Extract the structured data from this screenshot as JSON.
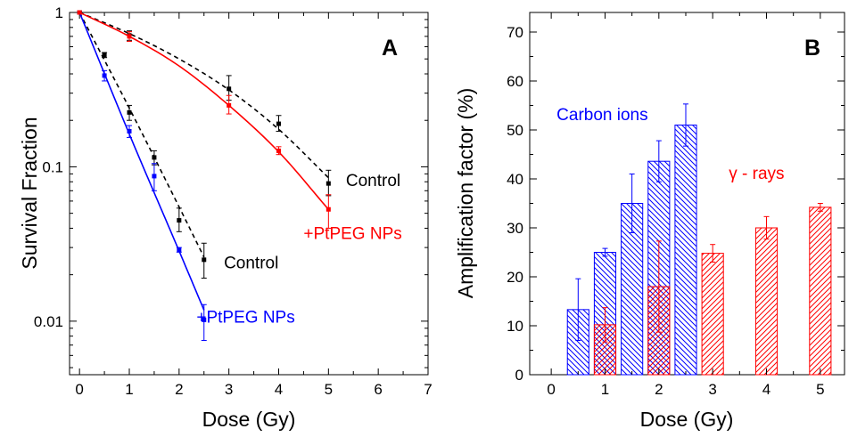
{
  "chart_data": [
    {
      "type": "scatter",
      "panel_label": "A",
      "xlabel": "Dose (Gy)",
      "ylabel": "Survival Fraction",
      "xlim": [
        -0.2,
        7
      ],
      "ylim": [
        0.0045,
        1
      ],
      "yscale": "log",
      "grid": false,
      "x_ticks": [
        "0",
        "1",
        "2",
        "3",
        "4",
        "5",
        "6",
        "7"
      ],
      "y_ticks": [
        "1",
        "0.1",
        "0.01"
      ],
      "series": [
        {
          "name": "Control",
          "color": "#000000",
          "line_style": "dashed",
          "x": [
            0,
            0.5,
            1,
            1.5,
            2,
            2.5
          ],
          "y": [
            1,
            0.53,
            0.225,
            0.115,
            0.045,
            0.025
          ],
          "err_low": [
            1,
            0.51,
            0.2,
            0.103,
            0.038,
            0.019
          ],
          "err_high": [
            1,
            0.55,
            0.25,
            0.127,
            0.054,
            0.032
          ],
          "fit": [
            [
              0,
              1
            ],
            [
              1,
              0.24
            ],
            [
              2,
              0.055
            ],
            [
              2.5,
              0.026
            ]
          ]
        },
        {
          "name": "+PtPEG NPs",
          "color": "#0000ff",
          "line_style": "solid",
          "x": [
            0,
            0.5,
            1,
            1.5,
            2,
            2.5
          ],
          "y": [
            1,
            0.39,
            0.17,
            0.087,
            0.029,
            0.0102
          ],
          "err_low": [
            1,
            0.36,
            0.155,
            0.07,
            0.028,
            0.0075
          ],
          "err_high": [
            1,
            0.42,
            0.185,
            0.105,
            0.03,
            0.0128
          ],
          "fit": [
            [
              0,
              1
            ],
            [
              1,
              0.163
            ],
            [
              2,
              0.0285
            ],
            [
              2.5,
              0.0118
            ]
          ]
        },
        {
          "name": "Control",
          "color": "#000000",
          "line_style": "dashed",
          "x": [
            0,
            1,
            3,
            4,
            5
          ],
          "y": [
            1,
            0.71,
            0.32,
            0.19,
            0.078
          ],
          "err_low": [
            1,
            0.66,
            0.27,
            0.17,
            0.065
          ],
          "err_high": [
            1,
            0.76,
            0.39,
            0.215,
            0.095
          ],
          "fit": [
            [
              0,
              1
            ],
            [
              1,
              0.73
            ],
            [
              2,
              0.5
            ],
            [
              3,
              0.315
            ],
            [
              4,
              0.175
            ],
            [
              5,
              0.085
            ]
          ]
        },
        {
          "name": "+PtPEG NPs",
          "color": "#ff0000",
          "line_style": "solid",
          "x": [
            0,
            1,
            3,
            4,
            5
          ],
          "y": [
            1,
            0.7,
            0.25,
            0.127,
            0.053
          ],
          "err_low": [
            1,
            0.65,
            0.22,
            0.12,
            0.04
          ],
          "err_high": [
            1,
            0.75,
            0.29,
            0.135,
            0.066
          ],
          "fit": [
            [
              0,
              1
            ],
            [
              1,
              0.7
            ],
            [
              2,
              0.45
            ],
            [
              3,
              0.25
            ],
            [
              4,
              0.125
            ],
            [
              5,
              0.053
            ]
          ]
        }
      ],
      "annotations": [
        {
          "text": "Control",
          "color": "#000000",
          "at": [
            5.35,
            0.075
          ]
        },
        {
          "text": "+PtPEG NPs",
          "color": "#ff0000",
          "at": [
            4.5,
            0.034
          ]
        },
        {
          "text": "Control",
          "color": "#000000",
          "at": [
            2.9,
            0.022
          ]
        },
        {
          "text": "+PtPEG NPs",
          "color": "#0000ff",
          "at": [
            2.35,
            0.0098
          ]
        }
      ]
    },
    {
      "type": "bar",
      "panel_label": "B",
      "xlabel": "Dose (Gy)",
      "ylabel": "Amplification factor (%)",
      "xlim": [
        -0.4,
        5.45
      ],
      "ylim": [
        0,
        74
      ],
      "grid": false,
      "x_ticks": [
        "0",
        "1",
        "2",
        "3",
        "4",
        "5"
      ],
      "y_ticks": [
        "0",
        "10",
        "20",
        "30",
        "40",
        "50",
        "60",
        "70"
      ],
      "bar_width": 0.4,
      "series": [
        {
          "name": "Carbon ions",
          "color": "#0000ff",
          "hatch": "backslash",
          "x": [
            0.5,
            1,
            1.5,
            2,
            2.5
          ],
          "values": [
            13.3,
            25,
            35,
            43.6,
            51
          ],
          "errors": [
            6.3,
            0.8,
            6,
            4.2,
            4.3
          ]
        },
        {
          "name": "γ - rays",
          "color": "#ff0000",
          "hatch": "slash",
          "x": [
            1,
            2,
            3,
            4,
            5
          ],
          "values": [
            10.2,
            18,
            24.8,
            30,
            34.2
          ],
          "errors": [
            3.5,
            9.3,
            1.8,
            2.3,
            0.8
          ]
        }
      ],
      "annotations": [
        {
          "text": "Carbon ions",
          "color": "#0000ff",
          "at": [
            0.1,
            52
          ]
        },
        {
          "text": "γ - rays",
          "color": "#ff0000",
          "at": [
            3.3,
            40
          ]
        }
      ]
    }
  ]
}
